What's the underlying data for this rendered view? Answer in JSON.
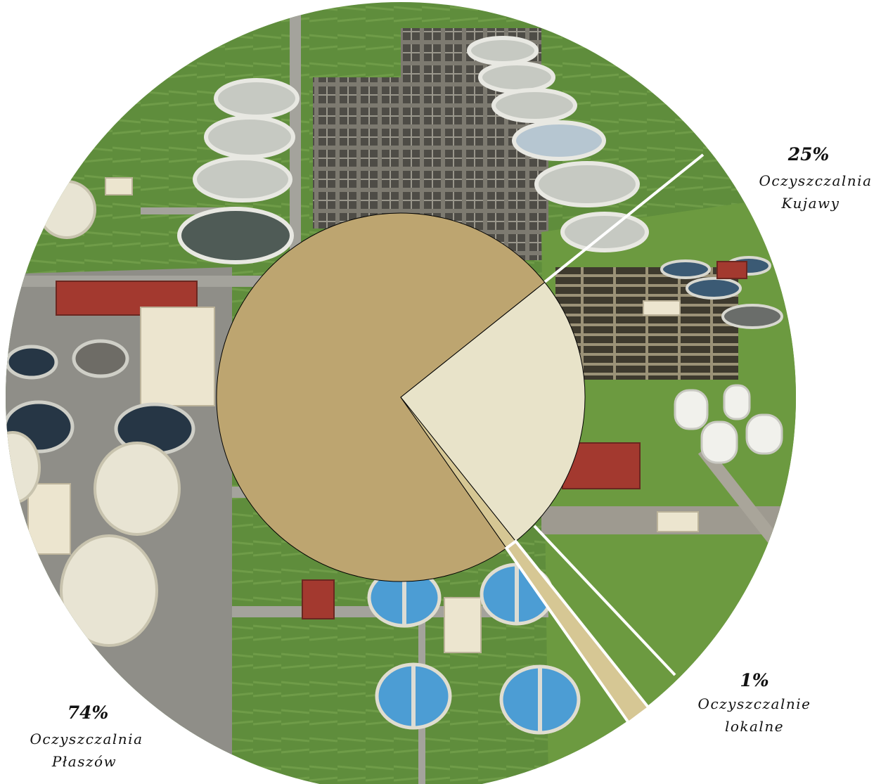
{
  "chart_data": {
    "type": "pie",
    "title": "",
    "slices": [
      {
        "percent_label": "74%",
        "value": 74,
        "name_lines": [
          "Oczyszczalnia",
          "Płaszów"
        ],
        "color": "#bda570"
      },
      {
        "percent_label": "25%",
        "value": 25,
        "name_lines": [
          "Oczyszczalnia",
          "Kujawy"
        ],
        "color": "#e8e3c9"
      },
      {
        "percent_label": "1%",
        "value": 1,
        "name_lines": [
          "Oczyszczalnie",
          "lokalne"
        ],
        "color": "#d6c794"
      }
    ],
    "background": "aerial photograph of wastewater treatment plants"
  }
}
